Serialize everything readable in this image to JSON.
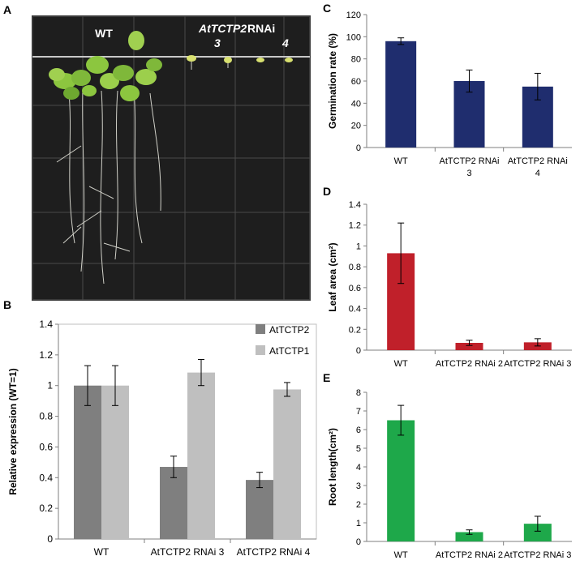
{
  "panels": {
    "A": "A",
    "B": "B",
    "C": "C",
    "D": "D",
    "E": "E"
  },
  "photo": {
    "label_wt": "WT",
    "label_rnai_gene": "AtTCTP2",
    "label_rnai_suffix": " RNAi",
    "label_line3": "3",
    "label_line4": "4"
  },
  "chart_data": [
    {
      "id": "B",
      "type": "bar",
      "title": "",
      "xlabel": "",
      "ylabel": "Relative expression (WT=1)",
      "categories": [
        "WT",
        "AtTCTP2 RNAi 3",
        "AtTCTP2 RNAi 4"
      ],
      "ylim": [
        0,
        1.4
      ],
      "yticks": [
        "0",
        "0.2",
        "0.4",
        "0.6",
        "0.8",
        "1",
        "1.2",
        "1.4"
      ],
      "series": [
        {
          "name": "AtTCTP2",
          "color": "#7f7f7f",
          "values": [
            1.0,
            0.47,
            0.385
          ],
          "errors": [
            0.13,
            0.07,
            0.05
          ]
        },
        {
          "name": "AtTCTP1",
          "color": "#bfbfbf",
          "values": [
            1.0,
            1.085,
            0.975
          ],
          "errors": [
            0.13,
            0.085,
            0.045
          ]
        }
      ],
      "legend": "top-right",
      "grid": false
    },
    {
      "id": "C",
      "type": "bar",
      "title": "",
      "xlabel": "",
      "ylabel": "Germination rate (%)",
      "categories": [
        [
          "WT"
        ],
        [
          "AtTCTP2 RNAi",
          "3"
        ],
        [
          "AtTCTP2 RNAi",
          "4"
        ]
      ],
      "ylim": [
        0,
        120
      ],
      "yticks": [
        "0",
        "20",
        "40",
        "60",
        "80",
        "100",
        "120"
      ],
      "series": [
        {
          "color": "#1f2d6e",
          "values": [
            96,
            60,
            55
          ],
          "errors": [
            3,
            10,
            12
          ]
        }
      ],
      "grid": false
    },
    {
      "id": "D",
      "type": "bar",
      "title": "",
      "xlabel": "",
      "ylabel": "Leaf area (cm²)",
      "categories": [
        "WT",
        "AtTCTP2 RNAi 2",
        "AtTCTP2 RNAi 3"
      ],
      "ylim": [
        0,
        1.4
      ],
      "yticks": [
        "0",
        "0.2",
        "0.4",
        "0.6",
        "0.8",
        "1",
        "1.2",
        "1.4"
      ],
      "series": [
        {
          "color": "#c0202a",
          "values": [
            0.93,
            0.07,
            0.075
          ],
          "errors": [
            0.29,
            0.025,
            0.035
          ]
        }
      ],
      "grid": false
    },
    {
      "id": "E",
      "type": "bar",
      "title": "",
      "xlabel": "",
      "ylabel": "Root length(cm²)",
      "categories": [
        "WT",
        "AtTCTP2 RNAi 2",
        "AtTCTP2 RNAi 3"
      ],
      "ylim": [
        0,
        8
      ],
      "yticks": [
        "0",
        "1",
        "2",
        "3",
        "4",
        "5",
        "6",
        "7",
        "8"
      ],
      "series": [
        {
          "color": "#1ea84a",
          "values": [
            6.5,
            0.5,
            0.95
          ],
          "errors": [
            0.8,
            0.12,
            0.4
          ]
        }
      ],
      "grid": false
    }
  ]
}
